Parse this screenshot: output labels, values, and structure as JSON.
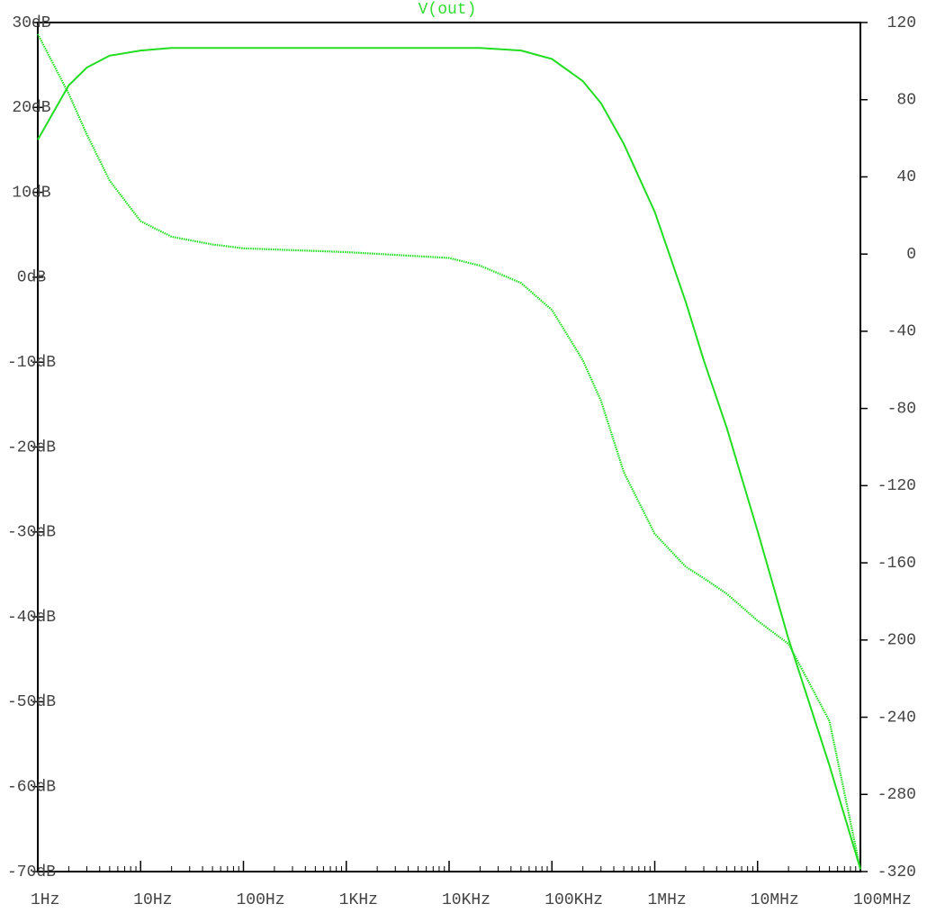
{
  "chart_data": {
    "type": "line",
    "title": "V(out)",
    "title_color": "#33dd33",
    "x": [
      1,
      2,
      3,
      5,
      10,
      20,
      50,
      100,
      1000,
      10000,
      20000,
      50000,
      100000,
      200000,
      300000,
      500000,
      1000000,
      2000000,
      3000000,
      5000000,
      10000000,
      20000000,
      50000000,
      100000000
    ],
    "series": [
      {
        "color": "#22dd22",
        "dash": "solid",
        "values": [
          16.2,
          22.6,
          24.7,
          26.1,
          26.7,
          27.0,
          27.0,
          27.0,
          27.0,
          27.0,
          27.0,
          26.7,
          25.7,
          23.1,
          20.5,
          15.7,
          7.7,
          -2.9,
          -9.8,
          -17.7,
          -29.9,
          -42.6,
          -57.5,
          -69.7
        ]
      },
      {
        "color": "#22dd22",
        "dash": "dotted",
        "axis": "y2",
        "values": [
          114,
          83,
          62,
          38,
          17,
          9,
          5,
          3,
          1,
          -2,
          -6,
          -15,
          -29,
          -55,
          -76,
          -113,
          -145,
          -162,
          -168,
          -176,
          -190,
          -202,
          -242,
          -319
        ]
      }
    ],
    "xscale": "log",
    "xlim": [
      1,
      100000000
    ],
    "xticks": [
      {
        "value": 1,
        "label": "1Hz"
      },
      {
        "value": 10,
        "label": "10Hz"
      },
      {
        "value": 100,
        "label": "100Hz"
      },
      {
        "value": 1000,
        "label": "1KHz"
      },
      {
        "value": 10000,
        "label": "10KHz"
      },
      {
        "value": 100000,
        "label": "100KHz"
      },
      {
        "value": 1000000,
        "label": "1MHz"
      },
      {
        "value": 10000000,
        "label": "10MHz"
      },
      {
        "value": 100000000,
        "label": "100MHz"
      }
    ],
    "ylim": [
      -70,
      30
    ],
    "yticks": [
      {
        "value": 30,
        "label": "30dB"
      },
      {
        "value": 20,
        "label": "20dB"
      },
      {
        "value": 10,
        "label": "10dB"
      },
      {
        "value": 0,
        "label": "0dB"
      },
      {
        "value": -10,
        "label": "-10dB"
      },
      {
        "value": -20,
        "label": "-20dB"
      },
      {
        "value": -30,
        "label": "-30dB"
      },
      {
        "value": -40,
        "label": "-40dB"
      },
      {
        "value": -50,
        "label": "-50dB"
      },
      {
        "value": -60,
        "label": "-60dB"
      },
      {
        "value": -70,
        "label": "-70dB"
      }
    ],
    "y2lim": [
      -320,
      120
    ],
    "y2ticks": [
      120,
      80,
      40,
      0,
      -40,
      -80,
      -120,
      -160,
      -200,
      -240,
      -280,
      -320
    ],
    "grid": false
  }
}
